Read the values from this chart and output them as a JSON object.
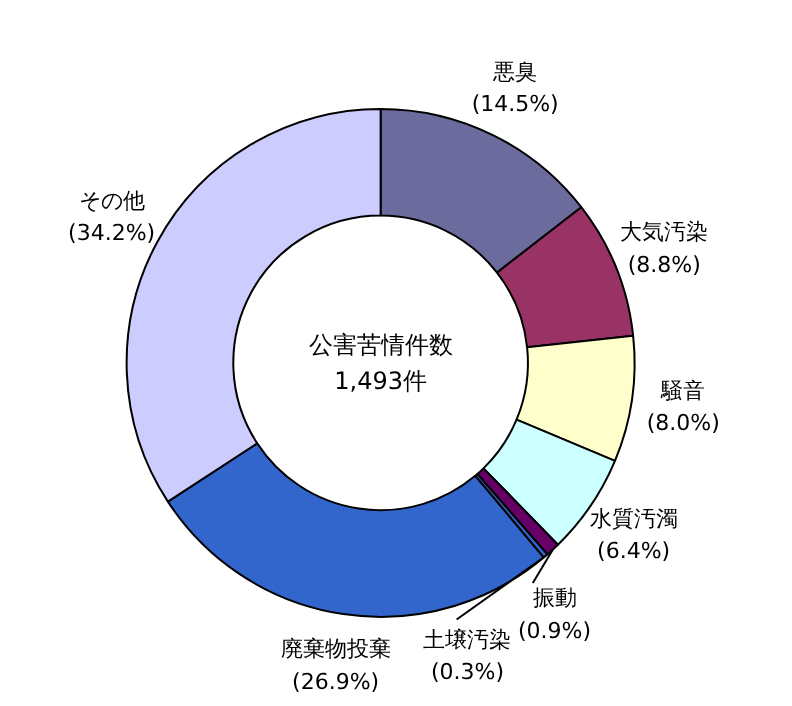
{
  "chart_data": {
    "type": "donut",
    "title": "公害苦情件数",
    "annotations": [
      "1,493件"
    ],
    "categories": [
      "悪臭",
      "大気汚染",
      "騒音",
      "水質汚濁",
      "振動",
      "土壌汚染",
      "廃棄物投棄",
      "その他"
    ],
    "values": [
      14.5,
      8.8,
      8.0,
      6.4,
      0.9,
      0.3,
      26.9,
      34.2
    ],
    "colors": [
      "#6b6b9e",
      "#993366",
      "#ffffcc",
      "#ccffff",
      "#660066",
      "#3366cc",
      "#3366cc",
      "#ccccff"
    ],
    "value_labels": [
      "(14.5%)",
      "(8.8%)",
      "(8.0%)",
      "(6.4%)",
      "(0.9%)",
      "(0.3%)",
      "(26.9%)",
      "(34.2%)"
    ]
  }
}
